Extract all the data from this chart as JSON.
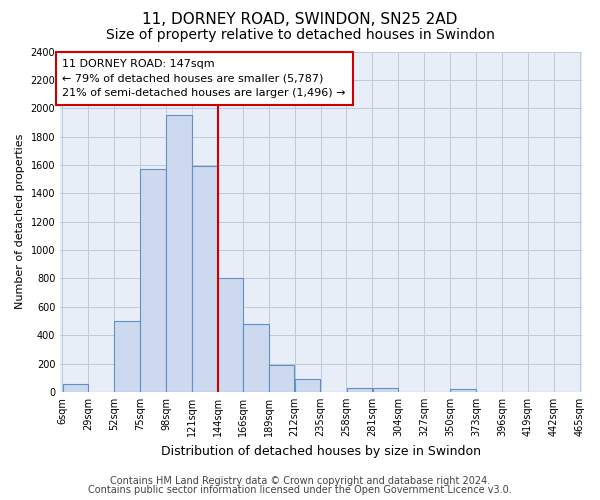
{
  "title": "11, DORNEY ROAD, SWINDON, SN25 2AD",
  "subtitle": "Size of property relative to detached houses in Swindon",
  "xlabel": "Distribution of detached houses by size in Swindon",
  "ylabel": "Number of detached properties",
  "bar_edges": [
    6,
    29,
    52,
    75,
    98,
    121,
    144,
    166,
    189,
    212,
    235,
    258,
    281,
    304,
    327,
    350,
    373,
    396,
    419,
    442,
    465
  ],
  "bar_heights": [
    55,
    0,
    500,
    1575,
    1950,
    1590,
    800,
    480,
    190,
    90,
    0,
    30,
    25,
    0,
    0,
    20,
    0,
    0,
    0,
    0
  ],
  "bar_color": "#ccd9ef",
  "bar_edge_color": "#6090c8",
  "vline_x": 144,
  "vline_color": "#cc0000",
  "annotation_box_text": "11 DORNEY ROAD: 147sqm\n← 79% of detached houses are smaller (5,787)\n21% of semi-detached houses are larger (1,496) →",
  "annotation_box_color": "#cc0000",
  "annotation_box_facecolor": "white",
  "ylim": [
    0,
    2400
  ],
  "yticks": [
    0,
    200,
    400,
    600,
    800,
    1000,
    1200,
    1400,
    1600,
    1800,
    2000,
    2200,
    2400
  ],
  "tick_labels": [
    "6sqm",
    "29sqm",
    "52sqm",
    "75sqm",
    "98sqm",
    "121sqm",
    "144sqm",
    "166sqm",
    "189sqm",
    "212sqm",
    "235sqm",
    "258sqm",
    "281sqm",
    "304sqm",
    "327sqm",
    "350sqm",
    "373sqm",
    "396sqm",
    "419sqm",
    "442sqm",
    "465sqm"
  ],
  "footnote1": "Contains HM Land Registry data © Crown copyright and database right 2024.",
  "footnote2": "Contains public sector information licensed under the Open Government Licence v3.0.",
  "bg_color": "#ffffff",
  "plot_bg_color": "#e8eef8",
  "grid_color": "#c0c8dc",
  "title_fontsize": 11,
  "subtitle_fontsize": 10,
  "xlabel_fontsize": 9,
  "ylabel_fontsize": 8,
  "tick_fontsize": 7,
  "footnote_fontsize": 7
}
